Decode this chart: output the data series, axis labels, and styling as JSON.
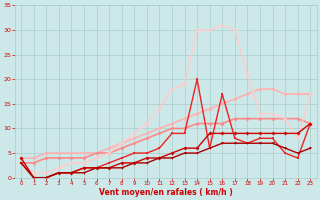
{
  "bg_color": "#cce8e8",
  "grid_color": "#aacccc",
  "xlabel": "Vent moyen/en rafales ( km/h )",
  "xlabel_color": "#cc0000",
  "tick_color": "#cc0000",
  "xlim": [
    -0.5,
    23.5
  ],
  "ylim": [
    0,
    35
  ],
  "xticks": [
    0,
    1,
    2,
    3,
    4,
    5,
    6,
    7,
    8,
    9,
    10,
    11,
    12,
    13,
    14,
    15,
    16,
    17,
    18,
    19,
    20,
    21,
    22,
    23
  ],
  "yticks": [
    0,
    5,
    10,
    15,
    20,
    25,
    30,
    35
  ],
  "lines": [
    {
      "x": [
        0,
        1,
        2,
        3,
        4,
        5,
        6,
        7,
        8,
        9,
        10,
        11,
        12,
        13,
        14,
        15,
        16,
        17,
        18,
        19,
        20,
        21,
        22,
        23
      ],
      "y": [
        4,
        4,
        5,
        5,
        5,
        5,
        5,
        6,
        7,
        8,
        9,
        10,
        11,
        12,
        13,
        14,
        15,
        16,
        17,
        18,
        18,
        17,
        17,
        17
      ],
      "color": "#ffb0b0",
      "lw": 1.2,
      "marker": "D",
      "ms": 2.0
    },
    {
      "x": [
        0,
        1,
        2,
        3,
        4,
        5,
        6,
        7,
        8,
        9,
        10,
        11,
        12,
        13,
        14,
        15,
        16,
        17,
        18,
        19,
        20,
        21,
        22,
        23
      ],
      "y": [
        3,
        3,
        4,
        4,
        4,
        4,
        5,
        5,
        6,
        7,
        8,
        9,
        10,
        10,
        11,
        11,
        11,
        12,
        12,
        12,
        12,
        12,
        12,
        11
      ],
      "color": "#ff8888",
      "lw": 1.2,
      "marker": "D",
      "ms": 2.0
    },
    {
      "x": [
        0,
        1,
        2,
        3,
        4,
        5,
        6,
        7,
        8,
        9,
        10,
        11,
        12,
        13,
        14,
        15,
        16,
        17,
        18,
        19,
        20,
        21,
        22,
        23
      ],
      "y": [
        3,
        1,
        1,
        2,
        3,
        3,
        4,
        5,
        7,
        9,
        11,
        14,
        18,
        19,
        30,
        30,
        31,
        30,
        21,
        13,
        13,
        12,
        8,
        17
      ],
      "color": "#ffcccc",
      "lw": 1.1,
      "marker": "D",
      "ms": 1.8
    },
    {
      "x": [
        0,
        1,
        2,
        3,
        4,
        5,
        6,
        7,
        8,
        9,
        10,
        11,
        12,
        13,
        14,
        15,
        16,
        17,
        18,
        19,
        20,
        21,
        22,
        23
      ],
      "y": [
        3,
        0,
        0,
        1,
        1,
        2,
        2,
        3,
        4,
        5,
        5,
        6,
        9,
        9,
        20,
        6,
        17,
        8,
        7,
        8,
        8,
        5,
        4,
        11
      ],
      "color": "#ee2222",
      "lw": 1.0,
      "marker": "s",
      "ms": 2.0
    },
    {
      "x": [
        0,
        1,
        2,
        3,
        4,
        5,
        6,
        7,
        8,
        9,
        10,
        11,
        12,
        13,
        14,
        15,
        16,
        17,
        18,
        19,
        20,
        21,
        22,
        23
      ],
      "y": [
        4,
        0,
        0,
        1,
        1,
        2,
        2,
        2,
        3,
        3,
        4,
        4,
        5,
        6,
        6,
        9,
        9,
        9,
        9,
        9,
        9,
        9,
        9,
        11
      ],
      "color": "#cc0000",
      "lw": 1.0,
      "marker": "D",
      "ms": 2.0
    },
    {
      "x": [
        0,
        1,
        2,
        3,
        4,
        5,
        6,
        7,
        8,
        9,
        10,
        11,
        12,
        13,
        14,
        15,
        16,
        17,
        18,
        19,
        20,
        21,
        22,
        23
      ],
      "y": [
        3,
        0,
        0,
        1,
        1,
        1,
        2,
        2,
        2,
        3,
        3,
        4,
        4,
        5,
        5,
        6,
        7,
        7,
        7,
        7,
        7,
        6,
        5,
        6
      ],
      "color": "#aa0000",
      "lw": 1.0,
      "marker": "v",
      "ms": 2.0
    }
  ]
}
